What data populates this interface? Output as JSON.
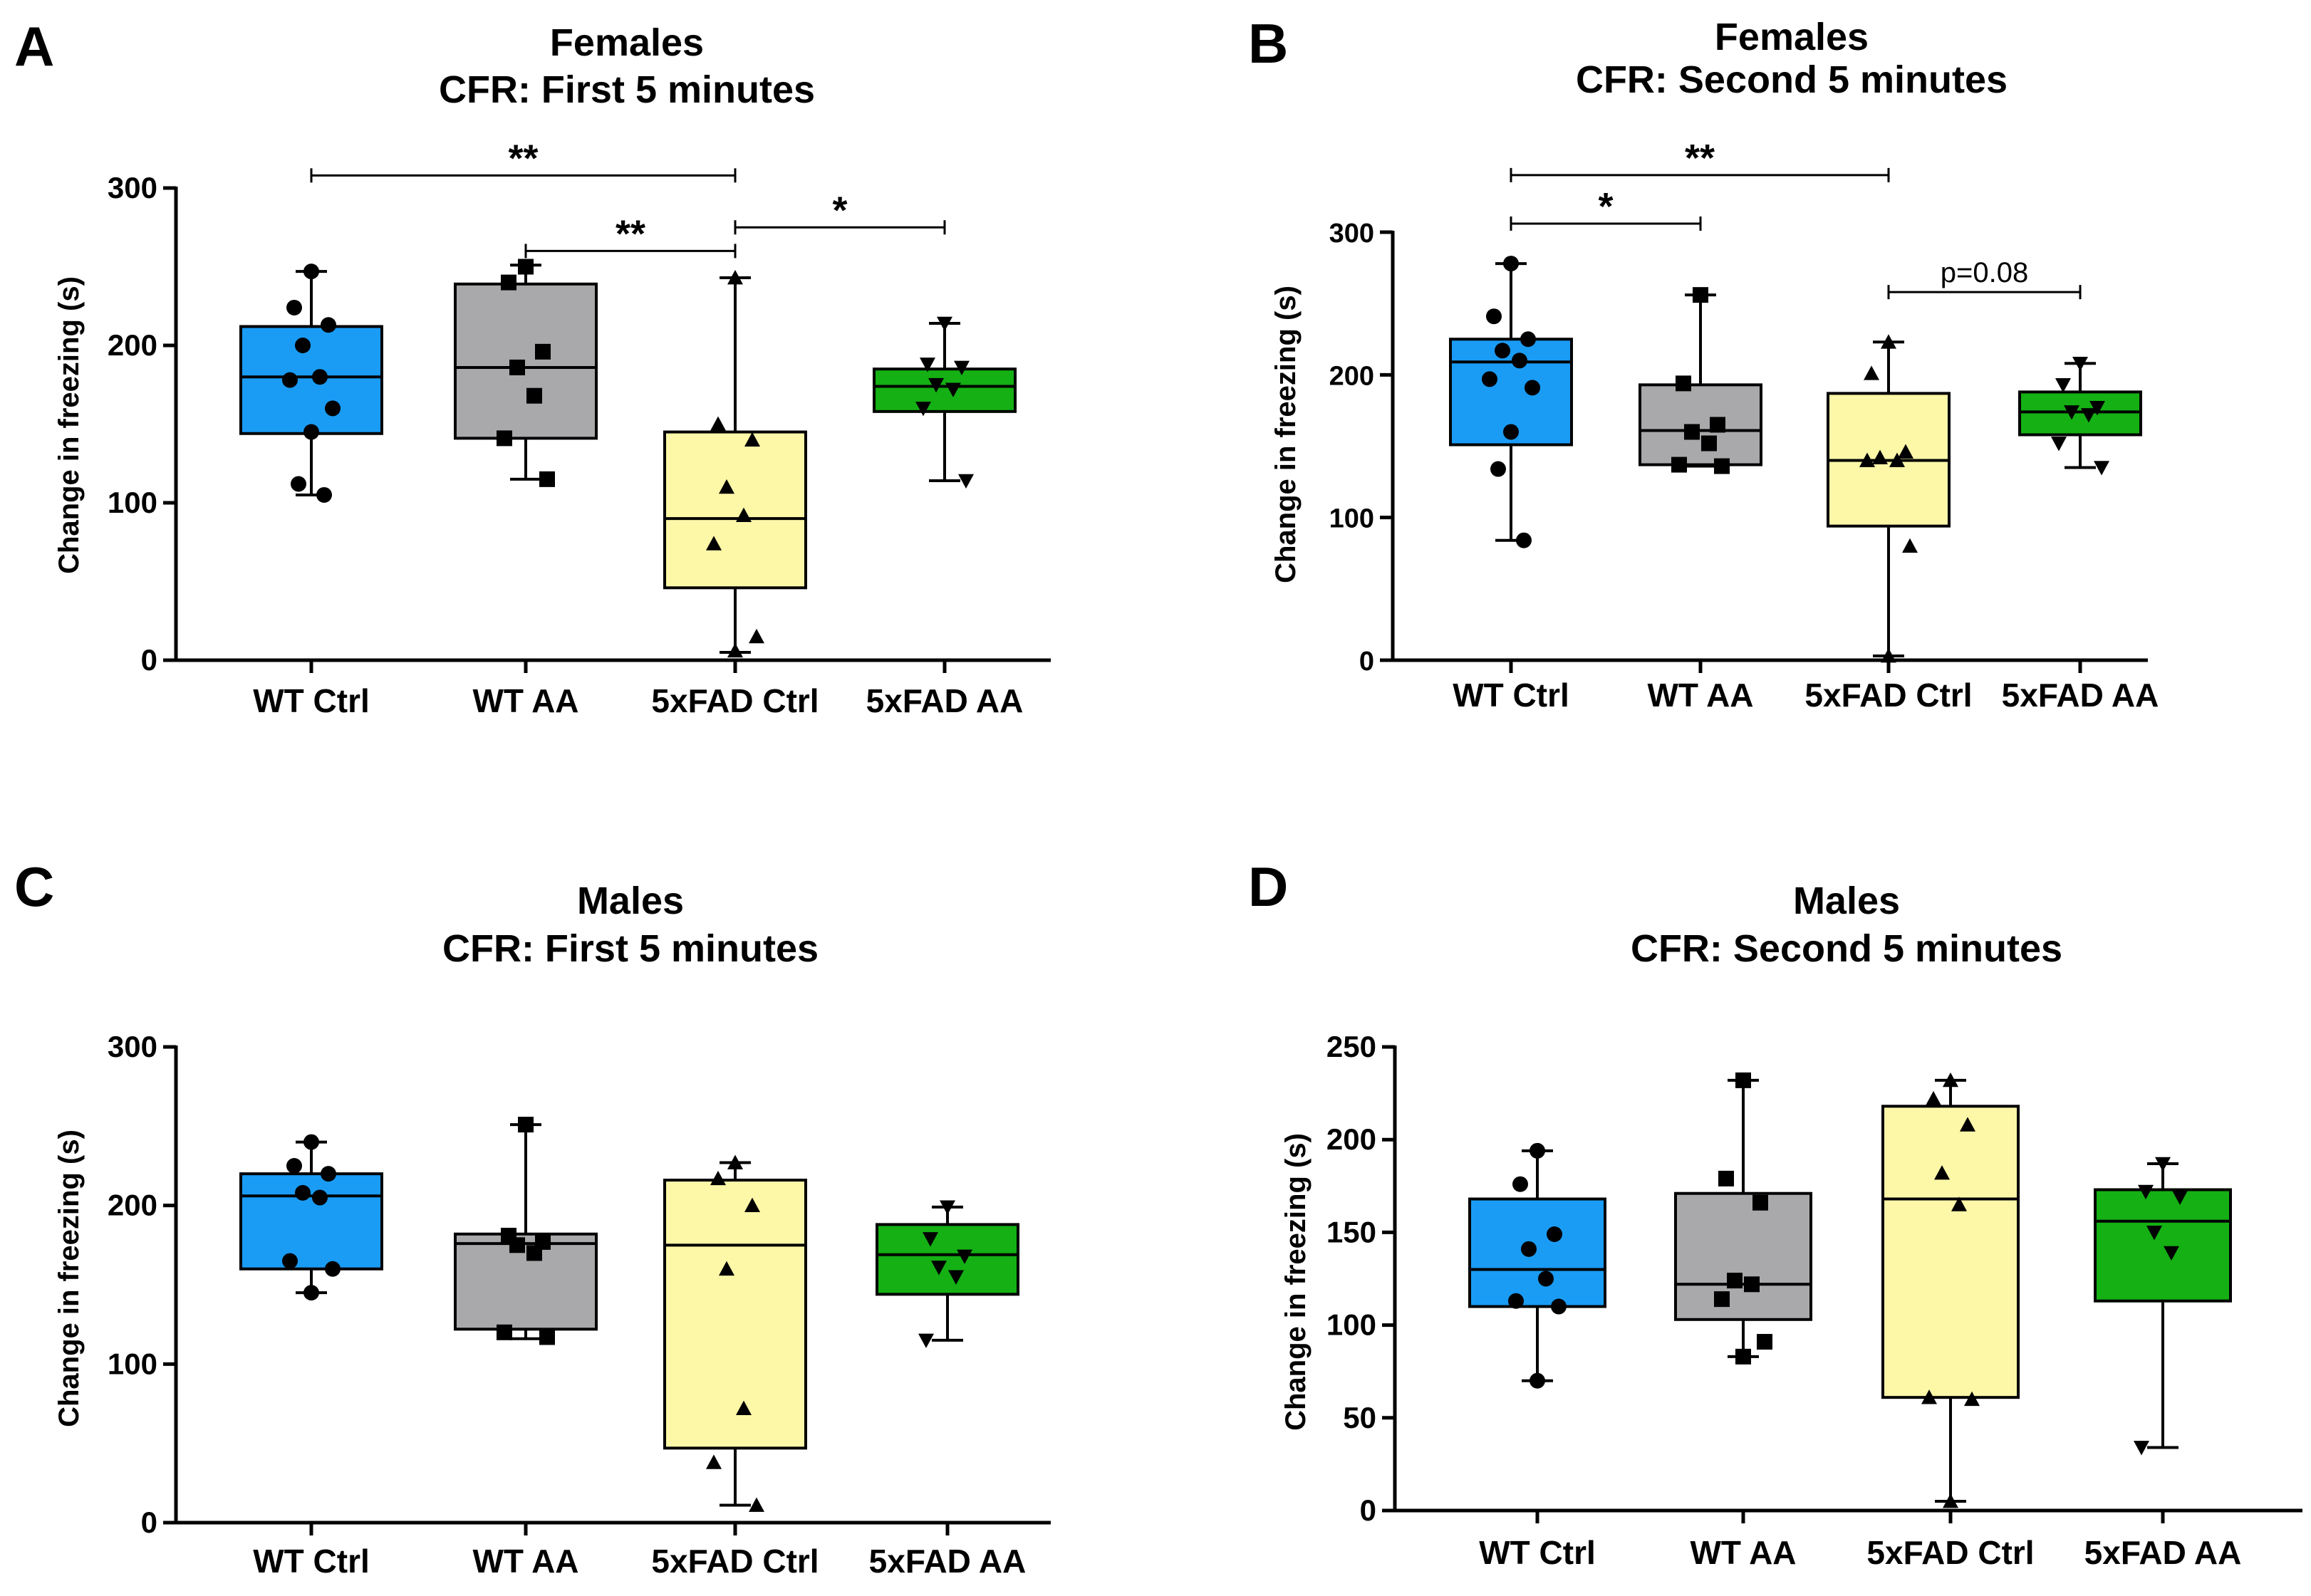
{
  "colors": {
    "wt_ctrl": "#1a9cf5",
    "wt_aa": "#a9a9ab",
    "fad_ctrl": "#fdf7a8",
    "fad_aa": "#14b014",
    "ink": "#000000"
  },
  "chart_data": [
    {
      "panel": "A",
      "type": "box",
      "title": "Females",
      "subtitle": "CFR: First 5 minutes",
      "xlabel": "",
      "ylabel": "Change in freezing (s)",
      "ylim": [
        0,
        300
      ],
      "yticks": [
        0,
        100,
        200,
        300
      ],
      "categories": [
        "WT Ctrl",
        "WT AA",
        "5xFAD Ctrl",
        "5xFAD AA"
      ],
      "series": [
        {
          "name": "WT Ctrl",
          "marker": "circle",
          "min": 105,
          "q1": 144,
          "median": 180,
          "q3": 212,
          "max": 247,
          "points": [
            247,
            224,
            213,
            200,
            180,
            178,
            160,
            145,
            112,
            105
          ]
        },
        {
          "name": "WT AA",
          "marker": "square",
          "min": 115,
          "q1": 141,
          "median": 186,
          "q3": 239,
          "max": 251,
          "points": [
            250,
            240,
            196,
            186,
            168,
            141,
            115
          ]
        },
        {
          "name": "5xFAD Ctrl",
          "marker": "triangle-up",
          "min": 5,
          "q1": 46,
          "median": 90,
          "q3": 145,
          "max": 243,
          "points": [
            243,
            150,
            140,
            110,
            92,
            74,
            15,
            6
          ]
        },
        {
          "name": "5xFAD AA",
          "marker": "triangle-down",
          "min": 114,
          "q1": 158,
          "median": 174,
          "q3": 185,
          "max": 214,
          "points": [
            214,
            188,
            186,
            175,
            172,
            160,
            114
          ]
        }
      ],
      "annotations": [
        {
          "from": 0,
          "to": 2,
          "value": 308,
          "label": "**"
        },
        {
          "from": 1,
          "to": 2,
          "value": 260,
          "label": "**"
        },
        {
          "from": 2,
          "to": 3,
          "value": 275,
          "label": "*"
        }
      ]
    },
    {
      "panel": "B",
      "type": "box",
      "title": "Females",
      "subtitle": "CFR: Second 5 minutes",
      "xlabel": "",
      "ylabel": "Change in freezing (s)",
      "ylim": [
        0,
        300
      ],
      "yticks": [
        0,
        100,
        200,
        300
      ],
      "categories": [
        "WT Ctrl",
        "WT AA",
        "5xFAD Ctrl",
        "5xFAD AA"
      ],
      "series": [
        {
          "name": "WT Ctrl",
          "marker": "circle",
          "min": 84,
          "q1": 151,
          "median": 209,
          "q3": 225,
          "max": 278,
          "points": [
            278,
            241,
            225,
            217,
            210,
            197,
            191,
            160,
            134,
            84
          ]
        },
        {
          "name": "WT AA",
          "marker": "square",
          "min": 136,
          "q1": 137,
          "median": 161,
          "q3": 193,
          "max": 256,
          "points": [
            256,
            194,
            165,
            160,
            152,
            137,
            136
          ]
        },
        {
          "name": "5xFAD Ctrl",
          "marker": "triangle-up",
          "min": 3,
          "q1": 94,
          "median": 140,
          "q3": 187,
          "max": 223,
          "points": [
            223,
            201,
            146,
            142,
            140,
            140,
            80,
            3
          ]
        },
        {
          "name": "5xFAD AA",
          "marker": "triangle-down",
          "min": 135,
          "q1": 158,
          "median": 174,
          "q3": 188,
          "max": 208,
          "points": [
            208,
            193,
            177,
            174,
            172,
            152,
            135
          ]
        }
      ],
      "annotations": [
        {
          "from": 0,
          "to": 2,
          "value": 340,
          "label": "**"
        },
        {
          "from": 0,
          "to": 1,
          "value": 306,
          "label": "*"
        },
        {
          "from": 2,
          "to": 3,
          "value": 258,
          "label": "p=0.08"
        }
      ]
    },
    {
      "panel": "C",
      "type": "box",
      "title": "Males",
      "subtitle": "CFR: First 5 minutes",
      "xlabel": "",
      "ylabel": "Change in freezing (s)",
      "ylim": [
        0,
        300
      ],
      "yticks": [
        0,
        100,
        200,
        300
      ],
      "categories": [
        "WT Ctrl",
        "WT AA",
        "5xFAD Ctrl",
        "5xFAD AA"
      ],
      "series": [
        {
          "name": "WT Ctrl",
          "marker": "circle",
          "min": 145,
          "q1": 160,
          "median": 206,
          "q3": 220,
          "max": 240,
          "points": [
            240,
            225,
            220,
            208,
            205,
            165,
            160,
            145
          ]
        },
        {
          "name": "WT AA",
          "marker": "square",
          "min": 116,
          "q1": 122,
          "median": 176,
          "q3": 182,
          "max": 251,
          "points": [
            251,
            181,
            177,
            175,
            170,
            120,
            117
          ]
        },
        {
          "name": "5xFAD Ctrl",
          "marker": "triangle-up",
          "min": 11,
          "q1": 47,
          "median": 175,
          "q3": 216,
          "max": 227,
          "points": [
            227,
            217,
            200,
            160,
            72,
            38,
            11
          ]
        },
        {
          "name": "5xFAD AA",
          "marker": "triangle-down",
          "min": 115,
          "q1": 144,
          "median": 169,
          "q3": 188,
          "max": 199,
          "points": [
            199,
            179,
            168,
            161,
            155,
            115
          ]
        }
      ],
      "annotations": []
    },
    {
      "panel": "D",
      "type": "box",
      "title": "Males",
      "subtitle": "CFR: Second 5 minutes",
      "xlabel": "",
      "ylabel": "Change in freezing (s)",
      "ylim": [
        0,
        250
      ],
      "yticks": [
        0,
        50,
        100,
        150,
        200,
        250
      ],
      "categories": [
        "WT Ctrl",
        "WT AA",
        "5xFAD Ctrl",
        "5xFAD AA"
      ],
      "series": [
        {
          "name": "WT Ctrl",
          "marker": "circle",
          "min": 70,
          "q1": 110,
          "median": 130,
          "q3": 168,
          "max": 194,
          "points": [
            194,
            176,
            149,
            141,
            125,
            113,
            110,
            70
          ]
        },
        {
          "name": "WT AA",
          "marker": "square",
          "min": 83,
          "q1": 103,
          "median": 122,
          "q3": 171,
          "max": 232,
          "points": [
            232,
            179,
            166,
            124,
            122,
            114,
            91,
            83
          ]
        },
        {
          "name": "5xFAD Ctrl",
          "marker": "triangle-up",
          "min": 5,
          "q1": 61,
          "median": 168,
          "q3": 218,
          "max": 232,
          "points": [
            232,
            222,
            208,
            182,
            165,
            61,
            60,
            5
          ]
        },
        {
          "name": "5xFAD AA",
          "marker": "triangle-down",
          "min": 34,
          "q1": 113,
          "median": 156,
          "q3": 173,
          "max": 187,
          "points": [
            187,
            172,
            169,
            150,
            139,
            34
          ]
        }
      ],
      "annotations": []
    }
  ]
}
